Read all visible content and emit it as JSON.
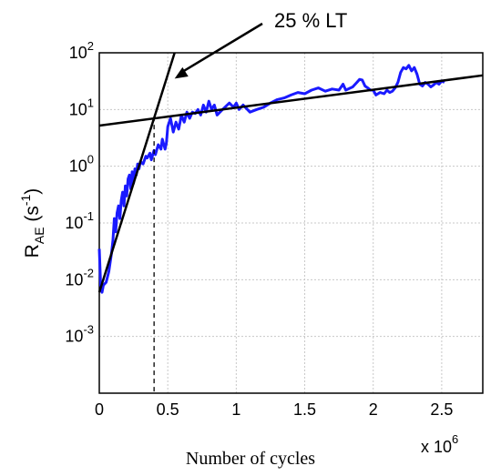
{
  "chart_data": {
    "type": "line",
    "xlabel": "Number of cycles",
    "x_multiplier": "x 10",
    "x_multiplier_exp": "6",
    "ylabel_main": "R",
    "ylabel_sub": "AE",
    "ylabel_unit_open": " (s",
    "ylabel_unit_exp": "-1",
    "ylabel_unit_close": ")",
    "xlim": [
      0,
      2.8
    ],
    "ylim": [
      0.0001,
      100
    ],
    "yscale": "log",
    "grid": true,
    "x_ticks": [
      {
        "v": 0,
        "label": "0"
      },
      {
        "v": 0.5,
        "label": "0.5"
      },
      {
        "v": 1,
        "label": "1"
      },
      {
        "v": 1.5,
        "label": "1.5"
      },
      {
        "v": 2,
        "label": "2"
      },
      {
        "v": 2.5,
        "label": "2.5"
      }
    ],
    "y_ticks": [
      {
        "v": 100,
        "base": "10",
        "exp": "2"
      },
      {
        "v": 10,
        "base": "10",
        "exp": "1"
      },
      {
        "v": 1,
        "base": "10",
        "exp": "0"
      },
      {
        "v": 0.1,
        "base": "10",
        "exp": "-1"
      },
      {
        "v": 0.01,
        "base": "10",
        "exp": "-2"
      },
      {
        "v": 0.001,
        "base": "10",
        "exp": "-3"
      }
    ],
    "series": [
      {
        "color": "#1a1aff",
        "points": [
          [
            0.0,
            0.035
          ],
          [
            0.01,
            0.008
          ],
          [
            0.02,
            0.006
          ],
          [
            0.03,
            0.008
          ],
          [
            0.05,
            0.009
          ],
          [
            0.07,
            0.014
          ],
          [
            0.09,
            0.03
          ],
          [
            0.1,
            0.05
          ],
          [
            0.11,
            0.12
          ],
          [
            0.12,
            0.07
          ],
          [
            0.13,
            0.15
          ],
          [
            0.14,
            0.2
          ],
          [
            0.15,
            0.12
          ],
          [
            0.16,
            0.25
          ],
          [
            0.17,
            0.35
          ],
          [
            0.18,
            0.2
          ],
          [
            0.19,
            0.45
          ],
          [
            0.2,
            0.3
          ],
          [
            0.21,
            0.6
          ],
          [
            0.22,
            0.7
          ],
          [
            0.23,
            0.4
          ],
          [
            0.24,
            0.8
          ],
          [
            0.25,
            0.5
          ],
          [
            0.26,
            0.9
          ],
          [
            0.27,
            0.7
          ],
          [
            0.28,
            1.1
          ],
          [
            0.29,
            0.9
          ],
          [
            0.3,
            1.2
          ],
          [
            0.32,
            1.1
          ],
          [
            0.34,
            1.5
          ],
          [
            0.35,
            1.4
          ],
          [
            0.37,
            1.7
          ],
          [
            0.38,
            1.3
          ],
          [
            0.4,
            1.9
          ],
          [
            0.41,
            1.6
          ],
          [
            0.43,
            2.4
          ],
          [
            0.45,
            2.0
          ],
          [
            0.46,
            3.0
          ],
          [
            0.48,
            2.0
          ],
          [
            0.49,
            2.6
          ],
          [
            0.5,
            5.0
          ],
          [
            0.52,
            7.0
          ],
          [
            0.54,
            4.0
          ],
          [
            0.56,
            6.0
          ],
          [
            0.58,
            4.5
          ],
          [
            0.6,
            8.0
          ],
          [
            0.62,
            6.0
          ],
          [
            0.64,
            9.0
          ],
          [
            0.66,
            7.0
          ],
          [
            0.68,
            9.0
          ],
          [
            0.7,
            8.5
          ],
          [
            0.72,
            10.0
          ],
          [
            0.74,
            8.0
          ],
          [
            0.76,
            12.0
          ],
          [
            0.78,
            9.0
          ],
          [
            0.8,
            14.0
          ],
          [
            0.82,
            10.0
          ],
          [
            0.84,
            12.0
          ],
          [
            0.86,
            8.0
          ],
          [
            0.9,
            10.0
          ],
          [
            0.95,
            13.0
          ],
          [
            0.98,
            11.0
          ],
          [
            1.0,
            13.0
          ],
          [
            1.02,
            10.0
          ],
          [
            1.05,
            12.0
          ],
          [
            1.1,
            9.0
          ],
          [
            1.15,
            10.0
          ],
          [
            1.2,
            11.0
          ],
          [
            1.25,
            13.0
          ],
          [
            1.3,
            15.0
          ],
          [
            1.35,
            16.0
          ],
          [
            1.4,
            18.0
          ],
          [
            1.45,
            20.0
          ],
          [
            1.5,
            19.0
          ],
          [
            1.55,
            22.0
          ],
          [
            1.6,
            24.0
          ],
          [
            1.65,
            21.0
          ],
          [
            1.7,
            23.0
          ],
          [
            1.75,
            22.0
          ],
          [
            1.78,
            28.0
          ],
          [
            1.8,
            22.0
          ],
          [
            1.85,
            25.0
          ],
          [
            1.88,
            30.0
          ],
          [
            1.9,
            34.0
          ],
          [
            1.92,
            33.0
          ],
          [
            1.94,
            26.0
          ],
          [
            1.96,
            24.0
          ],
          [
            1.98,
            22.0
          ],
          [
            2.0,
            22.0
          ],
          [
            2.02,
            18.0
          ],
          [
            2.05,
            20.0
          ],
          [
            2.08,
            19.0
          ],
          [
            2.1,
            22.0
          ],
          [
            2.12,
            20.0
          ],
          [
            2.14,
            21.0
          ],
          [
            2.16,
            24.0
          ],
          [
            2.18,
            30.0
          ],
          [
            2.2,
            45.0
          ],
          [
            2.22,
            55.0
          ],
          [
            2.24,
            52.0
          ],
          [
            2.26,
            60.0
          ],
          [
            2.28,
            48.0
          ],
          [
            2.3,
            55.0
          ],
          [
            2.32,
            42.0
          ],
          [
            2.34,
            28.0
          ],
          [
            2.36,
            26.0
          ],
          [
            2.38,
            30.0
          ],
          [
            2.4,
            28.0
          ],
          [
            2.42,
            25.0
          ],
          [
            2.44,
            27.0
          ],
          [
            2.46,
            30.0
          ],
          [
            2.48,
            28.0
          ],
          [
            2.5,
            32.0
          ],
          [
            2.52,
            30.0
          ]
        ]
      }
    ],
    "fit_lines": [
      {
        "color": "#000000",
        "x0": 0.0,
        "y0": 0.006,
        "x1": 0.55,
        "y1": 100
      },
      {
        "color": "#000000",
        "x0": 0.0,
        "y0": 5.2,
        "x1": 2.8,
        "y1": 40
      }
    ],
    "annotation": {
      "text": "25 % LT",
      "arrow_to_x": 0.55,
      "arrow_to_y": 35
    },
    "vline_x": 0.4
  }
}
